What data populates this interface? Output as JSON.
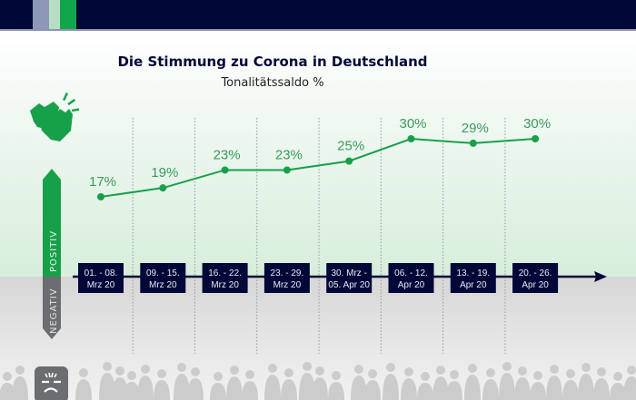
{
  "chart_data": {
    "type": "line",
    "title": "Die Stimmung zu Corona in Deutschland",
    "subtitle": "Tonalitätssaldo %",
    "xlabel": "",
    "ylabel": "Tonalitätssaldo %",
    "categories": [
      [
        "01. - 08.",
        "Mrz 20"
      ],
      [
        "09. - 15.",
        "Mrz 20"
      ],
      [
        "16. - 22.",
        "Mrz 20"
      ],
      [
        "23. - 29.",
        "Mrz 20"
      ],
      [
        "30. Mrz -",
        "05. Apr 20"
      ],
      [
        "06. - 12.",
        "Apr 20"
      ],
      [
        "13. - 19.",
        "Apr 20"
      ],
      [
        "20. - 26.",
        "Apr 20"
      ]
    ],
    "series": [
      {
        "name": "Tonalitätssaldo",
        "values": [
          17,
          19,
          23,
          23,
          25,
          30,
          29,
          30
        ],
        "color": "#17a04a"
      }
    ],
    "data_labels": [
      "17%",
      "19%",
      "23%",
      "23%",
      "25%",
      "30%",
      "29%",
      "30%"
    ],
    "ylim": [
      0,
      30
    ],
    "grid": "vertical-dotted",
    "side_labels": {
      "positive": "POSITIV",
      "negative": "NEGATIV"
    }
  },
  "colors": {
    "navy": "#000838",
    "green": "#17a04a",
    "label_green": "#3a9a5c",
    "gray": "#6b6d70"
  }
}
